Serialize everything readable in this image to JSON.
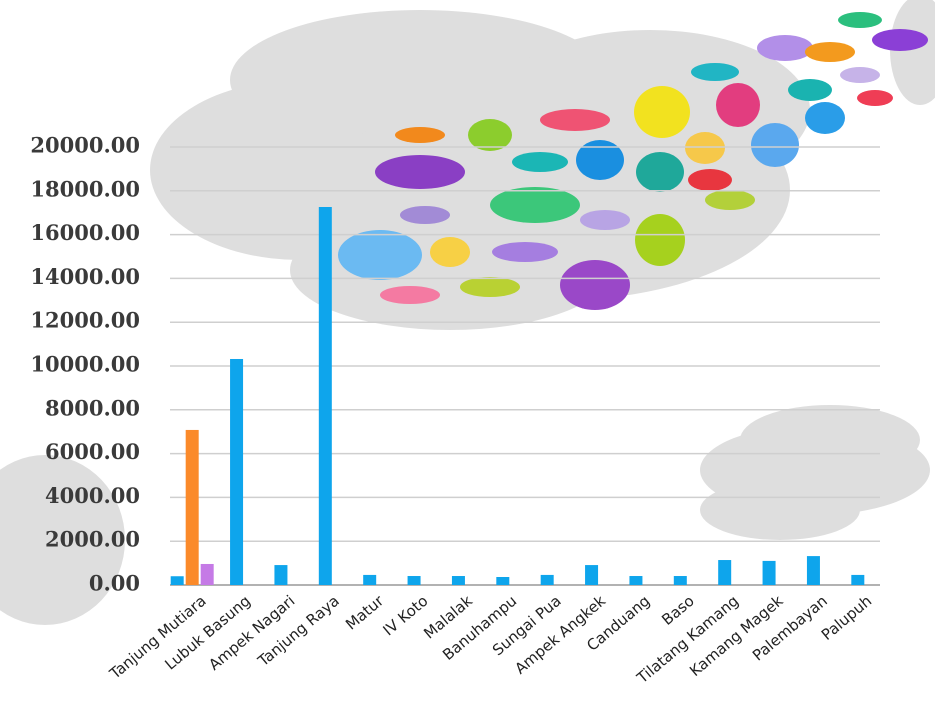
{
  "chart_data": {
    "type": "bar",
    "categories": [
      "Tanjung Mutiara",
      "Lubuk Basung",
      "Ampek Nagari",
      "Tanjung Raya",
      "Matur",
      "IV Koto",
      "Malalak",
      "Banuhampu",
      "Sungai Pua",
      "Ampek Angkek",
      "Canduang",
      "Baso",
      "Tilatang Kamang",
      "Kamang Magek",
      "Palembayan",
      "Palupuh"
    ],
    "series": [
      {
        "color": "#0ea5ec",
        "values": [
          400,
          10320,
          910,
          17260,
          460,
          410,
          410,
          365,
          460,
          910,
          410,
          410,
          1140,
          1100,
          1320,
          460
        ]
      },
      {
        "color": "#fb8a2a",
        "values": [
          7080,
          null,
          null,
          null,
          null,
          null,
          null,
          null,
          null,
          null,
          null,
          null,
          null,
          null,
          null,
          null
        ]
      },
      {
        "color": "#c57ae6",
        "values": [
          960,
          null,
          null,
          null,
          null,
          null,
          null,
          null,
          null,
          null,
          null,
          null,
          null,
          null,
          null,
          null
        ]
      }
    ],
    "ylim": [
      0,
      20000
    ],
    "yticks": [
      {
        "value": 0,
        "label": "0.00"
      },
      {
        "value": 2000,
        "label": "2000.00"
      },
      {
        "value": 4000,
        "label": "4000.00"
      },
      {
        "value": 6000,
        "label": "6000.00"
      },
      {
        "value": 8000,
        "label": "8000.00"
      },
      {
        "value": 10000,
        "label": "10000.00"
      },
      {
        "value": 12000,
        "label": "12000.00"
      },
      {
        "value": 14000,
        "label": "14000.00"
      },
      {
        "value": 16000,
        "label": "16000.00"
      },
      {
        "value": 18000,
        "label": "18000.00"
      },
      {
        "value": 20000,
        "label": "20000.00"
      }
    ],
    "grid": true
  }
}
